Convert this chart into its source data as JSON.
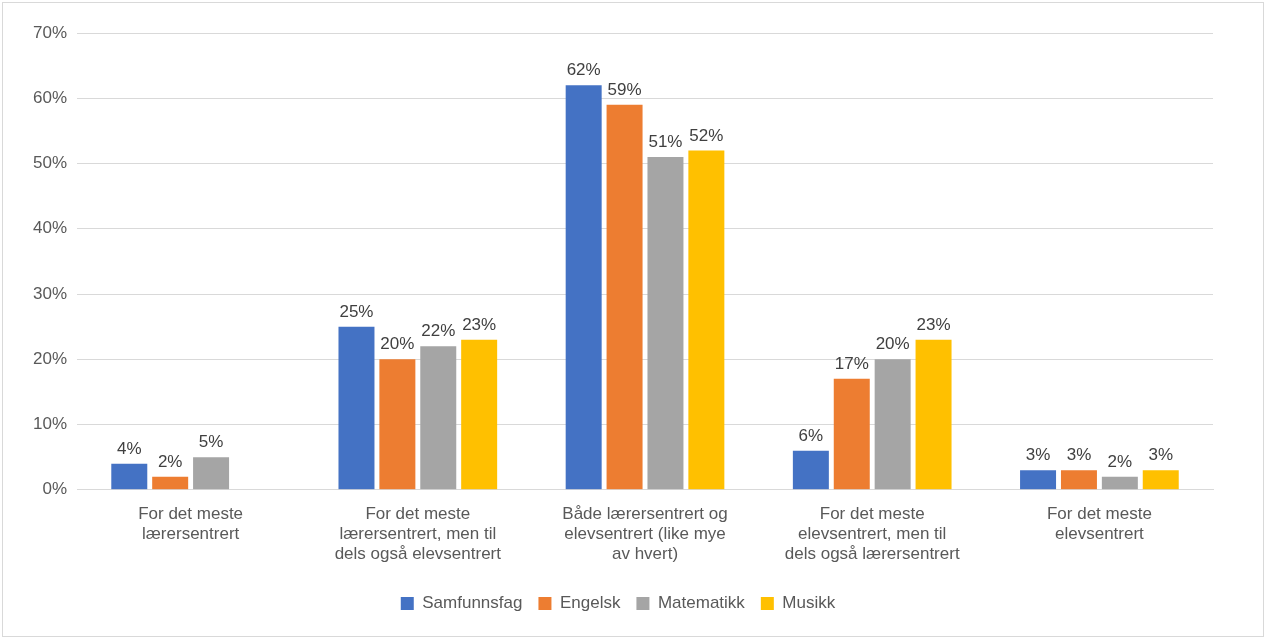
{
  "chart_data": {
    "type": "bar",
    "categories": [
      "For det meste lærersentrert",
      "For det meste lærersentrert, men til dels også elevsentrert",
      "Både lærersentrert og elevsentrert (like mye av hvert)",
      "For det meste elevsentrert, men til dels også lærersentrert",
      "For det meste elevsentrert"
    ],
    "series": [
      {
        "name": "Samfunnsfag",
        "color": "#4472c4",
        "values": [
          4,
          25,
          62,
          6,
          3
        ],
        "value_labels": [
          "4%",
          "25%",
          "62%",
          "6%",
          "3%"
        ]
      },
      {
        "name": "Engelsk",
        "color": "#ed7d31",
        "values": [
          2,
          20,
          59,
          17,
          3
        ],
        "value_labels": [
          "2%",
          "20%",
          "59%",
          "17%",
          "3%"
        ]
      },
      {
        "name": "Matematikk",
        "color": "#a5a5a5",
        "values": [
          5,
          22,
          51,
          20,
          2
        ],
        "value_labels": [
          "5%",
          "22%",
          "51%",
          "20%",
          "2%"
        ]
      },
      {
        "name": "Musikk",
        "color": "#ffc000",
        "values": [
          null,
          23,
          52,
          23,
          3
        ],
        "value_labels": [
          null,
          "23%",
          "52%",
          "23%",
          "3%"
        ]
      }
    ],
    "ylim": [
      0,
      70
    ],
    "yticks": [
      {
        "value": 0,
        "label": "0%"
      },
      {
        "value": 10,
        "label": "10%"
      },
      {
        "value": 20,
        "label": "20%"
      },
      {
        "value": 30,
        "label": "30%"
      },
      {
        "value": 40,
        "label": "40%"
      },
      {
        "value": 50,
        "label": "50%"
      },
      {
        "value": 60,
        "label": "60%"
      },
      {
        "value": 70,
        "label": "70%"
      }
    ],
    "grid": "y",
    "legend": "bottom"
  }
}
